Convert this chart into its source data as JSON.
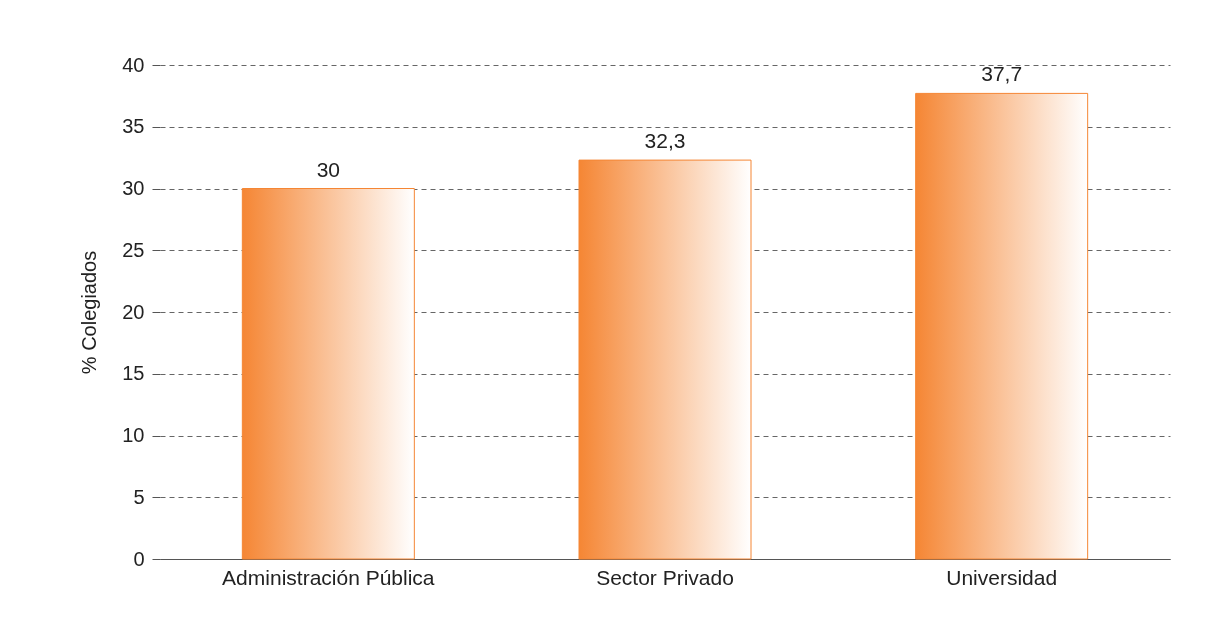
{
  "chart_data": {
    "type": "bar",
    "ylabel": "% Colegiados",
    "categories": [
      "Administración Pública",
      "Sector Privado",
      "Universidad"
    ],
    "values": [
      30,
      32.3,
      37.7
    ],
    "value_labels": [
      "30",
      "32,3",
      "37,7"
    ],
    "color": "#f58634",
    "ylim": [
      0,
      40
    ],
    "yticks": [
      0,
      5,
      10,
      15,
      20,
      25,
      30,
      35,
      40
    ],
    "grid": "y"
  }
}
